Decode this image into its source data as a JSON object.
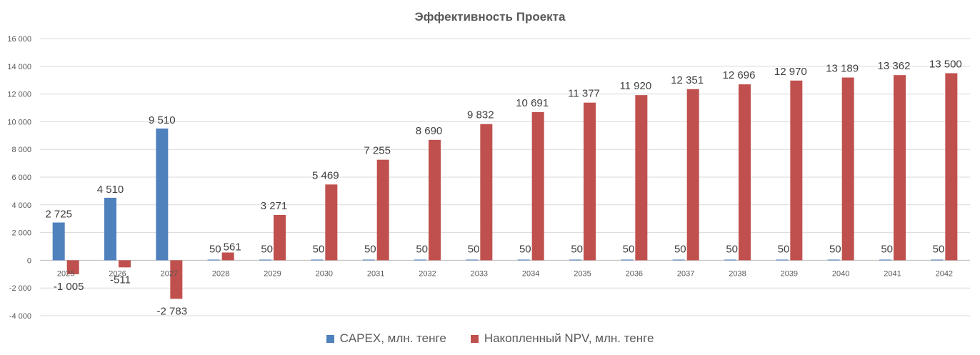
{
  "chart_data": {
    "type": "bar",
    "title": "Эффективность Проекта",
    "categories": [
      "2025",
      "2026",
      "2027",
      "2028",
      "2029",
      "2030",
      "2031",
      "2032",
      "2033",
      "2034",
      "2035",
      "2036",
      "2037",
      "2038",
      "2039",
      "2040",
      "2041",
      "2042"
    ],
    "series": [
      {
        "name": "CAPEX, млн. тенге",
        "color": "#4F81BD",
        "values": [
          2725,
          4510,
          9510,
          50,
          50,
          50,
          50,
          50,
          50,
          50,
          50,
          50,
          50,
          50,
          50,
          50,
          50,
          50
        ],
        "labels": [
          "2 725",
          "4 510",
          "9 510",
          "50",
          "50",
          "50",
          "50",
          "50",
          "50",
          "50",
          "50",
          "50",
          "50",
          "50",
          "50",
          "50",
          "50",
          "50"
        ]
      },
      {
        "name": "Накопленный NPV, млн. тенге",
        "color": "#C0504D",
        "values": [
          -1005,
          -511,
          -2783,
          561,
          3271,
          5469,
          7255,
          8690,
          9832,
          10691,
          11377,
          11920,
          12351,
          12696,
          12970,
          13189,
          13362,
          13500
        ],
        "labels": [
          "-1 005",
          "-511",
          "-2 783",
          "561",
          "3 271",
          "5 469",
          "7 255",
          "8 690",
          "9 832",
          "10 691",
          "11 377",
          "11 920",
          "12 351",
          "12 696",
          "12 970",
          "13 189",
          "13 362",
          "13 500"
        ]
      }
    ],
    "ylim": [
      -4000,
      16000
    ],
    "yticks": [
      -4000,
      -2000,
      0,
      2000,
      4000,
      6000,
      8000,
      10000,
      12000,
      14000,
      16000
    ],
    "ytick_labels": [
      "-4 000",
      "-2 000",
      "0",
      "2 000",
      "4 000",
      "6 000",
      "8 000",
      "10 000",
      "12 000",
      "14 000",
      "16 000"
    ],
    "grid": true,
    "legend": "bottom",
    "gridline_color": "#D9D9D9"
  }
}
